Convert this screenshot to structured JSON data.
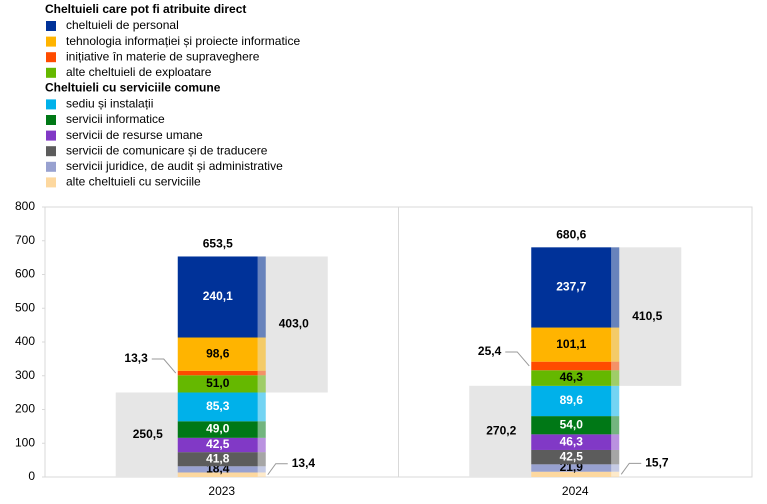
{
  "chart_data": {
    "type": "stacked-bar",
    "categories": [
      "2023",
      "2024"
    ],
    "ylim": [
      0,
      800
    ],
    "yticks": [
      0,
      100,
      200,
      300,
      400,
      500,
      600,
      700,
      800
    ],
    "groups": [
      {
        "title": "Cheltuieli care pot fi atribuite direct",
        "total": {
          "values": [
            403.0,
            410.5
          ],
          "value_labels": [
            "403,0",
            "410,5"
          ]
        },
        "series": [
          {
            "name": "cheltuieli de personal",
            "color": "#003299",
            "label_color": "#ffffff",
            "values": [
              240.1,
              237.7
            ],
            "value_labels": [
              "240,1",
              "237,7"
            ]
          },
          {
            "name": "tehnologia informației și proiecte informatice",
            "color": "#ffb400",
            "label_color": "#000000",
            "values": [
              98.6,
              101.1
            ],
            "value_labels": [
              "98,6",
              "101,1"
            ]
          },
          {
            "name": "inițiative în materie de supraveghere",
            "color": "#ff4b00",
            "label_color": "#000000",
            "label_position": "left",
            "values": [
              13.3,
              25.4
            ],
            "value_labels": [
              "13,3",
              "25,4"
            ]
          },
          {
            "name": "alte cheltuieli de exploatare",
            "color": "#65b800",
            "label_color": "#000000",
            "values": [
              51.0,
              46.3
            ],
            "value_labels": [
              "51,0",
              "46,3"
            ]
          }
        ]
      },
      {
        "title": "Cheltuieli cu serviciile comune",
        "total": {
          "values": [
            250.5,
            270.2
          ],
          "value_labels": [
            "250,5",
            "270,2"
          ]
        },
        "series": [
          {
            "name": "sediu și instalații",
            "color": "#00b1ea",
            "label_color": "#ffffff",
            "values": [
              85.3,
              89.6
            ],
            "value_labels": [
              "85,3",
              "89,6"
            ]
          },
          {
            "name": "servicii informatice",
            "color": "#007816",
            "label_color": "#ffffff",
            "values": [
              49.0,
              54.0
            ],
            "value_labels": [
              "49,0",
              "54,0"
            ]
          },
          {
            "name": "servicii de resurse umane",
            "color": "#8139c6",
            "label_color": "#ffffff",
            "values": [
              42.5,
              46.3
            ],
            "value_labels": [
              "42,5",
              "46,3"
            ]
          },
          {
            "name": "servicii de comunicare și de traducere",
            "color": "#5c5c5c",
            "label_color": "#ffffff",
            "values": [
              41.8,
              42.5
            ],
            "value_labels": [
              "41,8",
              "42,5"
            ]
          },
          {
            "name": "servicii juridice, de audit și administrative",
            "color": "#98a1d0",
            "label_color": "#000000",
            "values": [
              18.4,
              21.9
            ],
            "value_labels": [
              "18,4",
              "21,9"
            ]
          },
          {
            "name": "alte cheltuieli cu serviciile",
            "color": "#fdd89f",
            "label_color": "#000000",
            "label_position": "right",
            "values": [
              13.4,
              15.7
            ],
            "value_labels": [
              "13,4",
              "15,7"
            ]
          }
        ]
      }
    ],
    "total": {
      "values": [
        653.5,
        680.6
      ],
      "value_labels": [
        "653,5",
        "680,6"
      ]
    }
  }
}
